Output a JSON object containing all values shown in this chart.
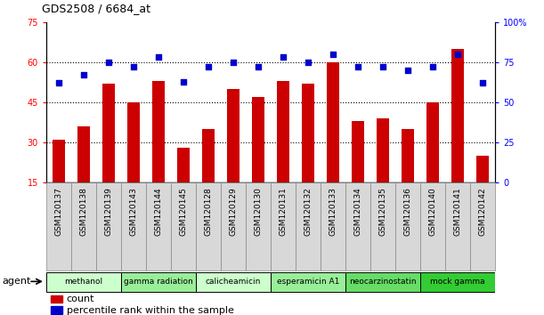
{
  "title": "GDS2508 / 6684_at",
  "categories": [
    "GSM120137",
    "GSM120138",
    "GSM120139",
    "GSM120143",
    "GSM120144",
    "GSM120145",
    "GSM120128",
    "GSM120129",
    "GSM120130",
    "GSM120131",
    "GSM120132",
    "GSM120133",
    "GSM120134",
    "GSM120135",
    "GSM120136",
    "GSM120140",
    "GSM120141",
    "GSM120142"
  ],
  "bar_values": [
    31,
    36,
    52,
    45,
    53,
    28,
    35,
    50,
    47,
    53,
    52,
    60,
    38,
    39,
    35,
    45,
    65,
    25
  ],
  "dot_values": [
    62,
    67,
    75,
    72,
    78,
    63,
    72,
    75,
    72,
    78,
    75,
    80,
    72,
    72,
    70,
    72,
    80,
    62
  ],
  "bar_color": "#cc0000",
  "dot_color": "#0000cc",
  "ylim_left": [
    15,
    75
  ],
  "ylim_right": [
    0,
    100
  ],
  "yticks_left": [
    15,
    30,
    45,
    60,
    75
  ],
  "yticks_right": [
    0,
    25,
    50,
    75,
    100
  ],
  "groups": [
    {
      "label": "methanol",
      "start": 0,
      "end": 2,
      "color": "#ccffcc"
    },
    {
      "label": "gamma radiation",
      "start": 3,
      "end": 5,
      "color": "#99ee99"
    },
    {
      "label": "calicheamicin",
      "start": 6,
      "end": 8,
      "color": "#ccffcc"
    },
    {
      "label": "esperamicin A1",
      "start": 9,
      "end": 11,
      "color": "#99ee99"
    },
    {
      "label": "neocarzinostatin",
      "start": 12,
      "end": 14,
      "color": "#66dd66"
    },
    {
      "label": "mock gamma",
      "start": 15,
      "end": 17,
      "color": "#33cc33"
    }
  ],
  "legend_count_label": "count",
  "legend_pct_label": "percentile rank within the sample",
  "agent_label": "agent",
  "grid_dotted_yticks": [
    30,
    45,
    60
  ],
  "background_color": "#ffffff",
  "xtick_bg_color": "#d8d8d8",
  "plot_bg_color": "#ffffff"
}
